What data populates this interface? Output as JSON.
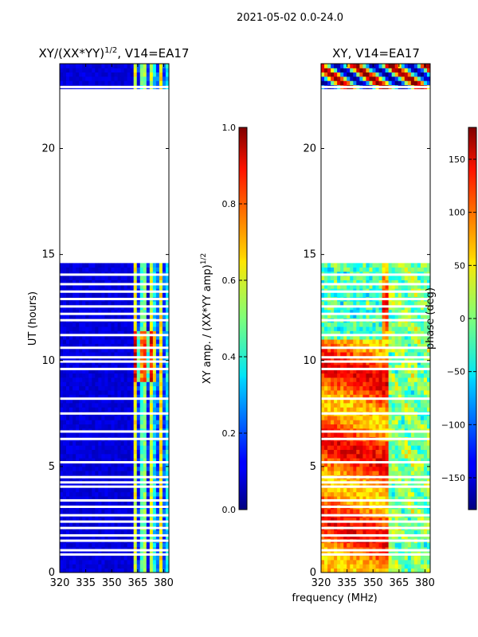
{
  "suptitle": "2021-05-02 0.0-24.0",
  "xlabel": "frequency (MHz)",
  "chart_data": [
    {
      "type": "heatmap",
      "title_prefix": "XY/(XX*YY)",
      "title_sup": "1/2",
      "title_suffix": ", V14=EA17",
      "xlabel": "frequency (MHz)",
      "ylabel": "UT (hours)",
      "xlim": [
        320,
        383
      ],
      "ylim": [
        0,
        24
      ],
      "xticks": [
        320,
        335,
        350,
        365,
        380
      ],
      "yticks": [
        0,
        5,
        10,
        15,
        20
      ],
      "data_gap_hours": [
        22.8,
        14.6
      ],
      "colorbar": {
        "label_prefix": "XY amp. / (XX*YY amp)",
        "label_sup": "1/2",
        "range": [
          0.0,
          1.0
        ],
        "ticks": [
          "0.0",
          "0.2",
          "0.4",
          "0.6",
          "0.8",
          "1.0"
        ],
        "colormap": "jet"
      }
    },
    {
      "type": "heatmap",
      "title": "XY, V14=EA17",
      "xlabel": "frequency (MHz)",
      "ylabel": "",
      "xlim": [
        320,
        383
      ],
      "ylim": [
        0,
        24
      ],
      "xticks": [
        320,
        335,
        350,
        365,
        380
      ],
      "yticks": [
        0,
        5,
        10,
        15,
        20
      ],
      "data_gap_hours": [
        22.8,
        14.6
      ],
      "colorbar": {
        "label": "phase (deg)",
        "range": [
          -180,
          180
        ],
        "ticks": [
          "−150",
          "−100",
          "−50",
          "0",
          "50",
          "100",
          "150"
        ],
        "colormap": "jet"
      }
    }
  ]
}
